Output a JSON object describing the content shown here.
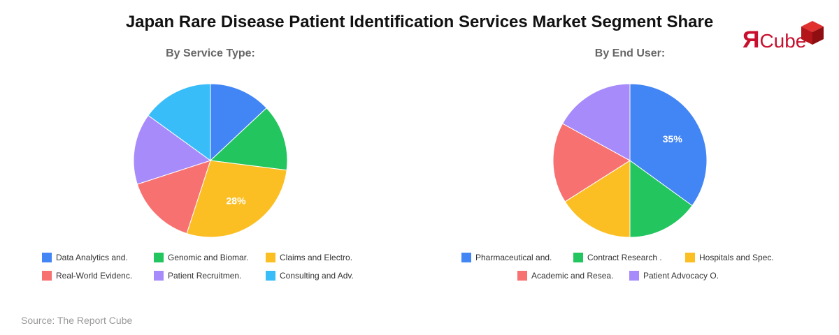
{
  "title": "Japan Rare Disease Patient Identification Services Market Segment Share",
  "logo": {
    "text_r": "Я",
    "text_rest": "Cube"
  },
  "source": "Source: The Report Cube",
  "chart_data": [
    {
      "type": "pie",
      "title": "By Service Type:",
      "categories": [
        "Data Analytics and.",
        "Genomic and Biomar.",
        "Claims and Electro.",
        "Real-World Evidenc.",
        "Patient Recruitmen.",
        "Consulting and Adv."
      ],
      "values": [
        13,
        14,
        28,
        15,
        15,
        15
      ],
      "colors": [
        "#4285F4",
        "#22C55E",
        "#FBBF24",
        "#F87171",
        "#A78BFA",
        "#38BDF8"
      ],
      "data_labels": [
        "",
        "",
        "28%",
        "",
        "",
        ""
      ],
      "legend_position": "bottom"
    },
    {
      "type": "pie",
      "title": "By End User:",
      "categories": [
        "Pharmaceutical and.",
        "Contract Research .",
        "Hospitals and Spec.",
        "Academic and Resea.",
        "Patient Advocacy O."
      ],
      "values": [
        35,
        15,
        16,
        17,
        17
      ],
      "colors": [
        "#4285F4",
        "#22C55E",
        "#FBBF24",
        "#F87171",
        "#A78BFA"
      ],
      "data_labels": [
        "35%",
        "",
        "",
        "",
        ""
      ],
      "legend_position": "bottom"
    }
  ]
}
